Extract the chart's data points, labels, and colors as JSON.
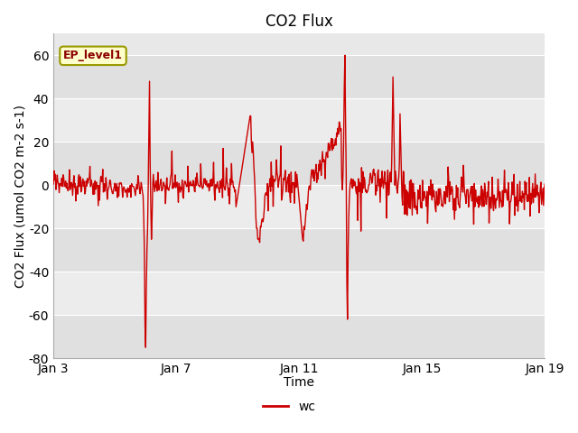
{
  "title": "CO2 Flux",
  "xlabel": "Time",
  "ylabel": "CO2 Flux (umol CO2 m-2 s-1)",
  "ylim": [
    -80,
    70
  ],
  "yticks": [
    -80,
    -60,
    -40,
    -20,
    0,
    20,
    40,
    60
  ],
  "xtick_positions": [
    3,
    7,
    11,
    15,
    19
  ],
  "xtick_labels": [
    "Jan 3",
    "Jan 7",
    "Jan 11",
    "Jan 15",
    "Jan 19"
  ],
  "line_color": "#cc0000",
  "line_width": 1.0,
  "legend_label": "wc",
  "annotation_text": "EP_level1",
  "fig_bg_color": "#ffffff",
  "plot_bg_color": "#e8e8e8",
  "grid_color": "#ffffff",
  "title_fontsize": 12,
  "label_fontsize": 10,
  "tick_fontsize": 10,
  "band_color1": "#e0e0e0",
  "band_color2": "#ececec"
}
